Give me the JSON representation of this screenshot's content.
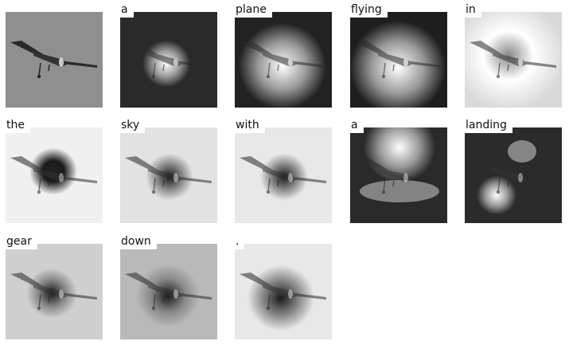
{
  "source_image": {
    "label": "source-image"
  },
  "caption_words": [
    "a",
    "plane",
    "flying",
    "in",
    "the",
    "sky",
    "with",
    "a",
    "landing",
    "gear",
    "down",
    "."
  ],
  "colors": {
    "background": "#ffffff",
    "photo_sky": "#8f8f8f",
    "plane": "#2b2b2b",
    "label_bg": "#ffffff"
  }
}
